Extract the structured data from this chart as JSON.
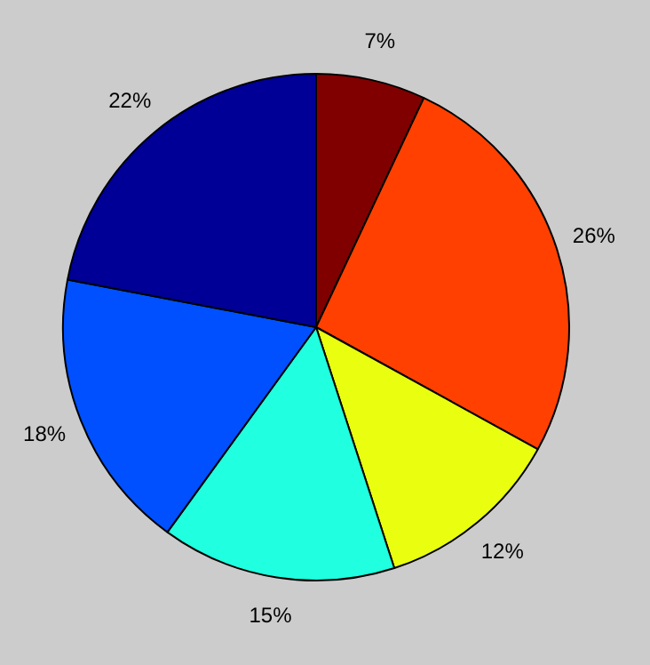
{
  "chart_data": {
    "type": "pie",
    "categories": [
      null,
      null,
      null,
      null,
      null,
      null
    ],
    "values": [
      7,
      26,
      12,
      15,
      18,
      22
    ],
    "colors": [
      "#800000",
      "#ff4000",
      "#eaff10",
      "#20ffdf",
      "#0050ff",
      "#000096"
    ],
    "value_labels": [
      "7%",
      "26%",
      "12%",
      "15%",
      "18%",
      "22%"
    ],
    "legend": false
  }
}
